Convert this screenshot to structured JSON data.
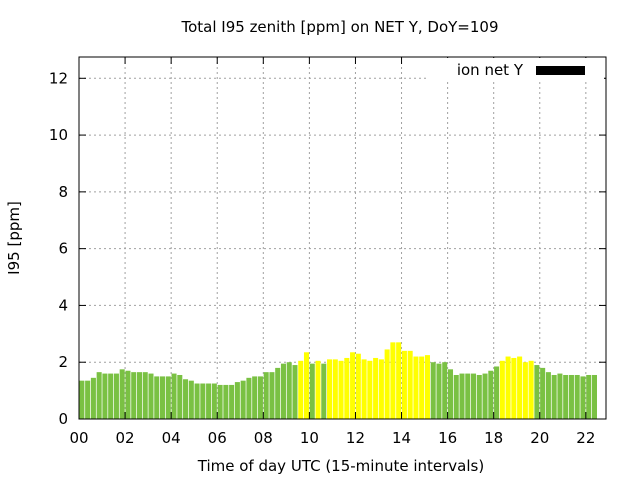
{
  "chart_data": {
    "type": "bar",
    "title": "Total I95 zenith [ppm] on NET Y, DoY=109",
    "xlabel": "Time of day UTC (15-minute intervals)",
    "ylabel": "I95 [ppm]",
    "ylim": [
      0,
      12.75
    ],
    "xlim": [
      0,
      22.875
    ],
    "yticks": [
      0,
      2,
      4,
      6,
      8,
      10,
      12
    ],
    "xticks": [
      "00",
      "02",
      "04",
      "06",
      "08",
      "10",
      "12",
      "14",
      "16",
      "18",
      "20",
      "22"
    ],
    "grid": true,
    "legend": {
      "label": "ion net Y",
      "color": "#000000",
      "position": "top-right"
    },
    "interval_hours": 0.25,
    "start_hour": 0,
    "colors": {
      "normal": "#7ac143",
      "elevated": "#ffff00"
    },
    "series": [
      {
        "name": "ion net Y",
        "values": [
          1.35,
          1.35,
          1.45,
          1.65,
          1.6,
          1.6,
          1.6,
          1.75,
          1.7,
          1.65,
          1.65,
          1.65,
          1.6,
          1.5,
          1.5,
          1.5,
          1.6,
          1.55,
          1.4,
          1.35,
          1.25,
          1.25,
          1.25,
          1.25,
          1.2,
          1.2,
          1.2,
          1.3,
          1.35,
          1.45,
          1.5,
          1.5,
          1.65,
          1.65,
          1.8,
          1.95,
          2.0,
          1.9,
          2.05,
          2.35,
          1.95,
          2.05,
          1.95,
          2.1,
          2.1,
          2.05,
          2.15,
          2.35,
          2.3,
          2.1,
          2.05,
          2.15,
          2.1,
          2.45,
          2.7,
          2.7,
          2.4,
          2.4,
          2.2,
          2.2,
          2.25,
          2.0,
          1.95,
          2.0,
          1.75,
          1.55,
          1.6,
          1.6,
          1.6,
          1.55,
          1.6,
          1.7,
          1.85,
          2.05,
          2.2,
          2.15,
          2.2,
          2.0,
          2.05,
          1.9,
          1.8,
          1.65,
          1.55,
          1.6,
          1.55,
          1.55,
          1.55,
          1.5,
          1.55,
          1.55
        ],
        "flags": [
          "n",
          "n",
          "n",
          "n",
          "n",
          "n",
          "n",
          "n",
          "n",
          "n",
          "n",
          "n",
          "n",
          "n",
          "n",
          "n",
          "n",
          "n",
          "n",
          "n",
          "n",
          "n",
          "n",
          "n",
          "n",
          "n",
          "n",
          "n",
          "n",
          "n",
          "n",
          "n",
          "n",
          "n",
          "n",
          "n",
          "n",
          "n",
          "e",
          "e",
          "n",
          "e",
          "n",
          "e",
          "e",
          "e",
          "e",
          "e",
          "e",
          "e",
          "e",
          "e",
          "e",
          "e",
          "e",
          "e",
          "e",
          "e",
          "e",
          "e",
          "e",
          "n",
          "n",
          "n",
          "n",
          "n",
          "n",
          "n",
          "n",
          "n",
          "n",
          "n",
          "n",
          "e",
          "e",
          "e",
          "e",
          "e",
          "e",
          "n",
          "n",
          "n",
          "n",
          "n",
          "n",
          "n",
          "n",
          "n",
          "n",
          "n"
        ]
      }
    ]
  }
}
